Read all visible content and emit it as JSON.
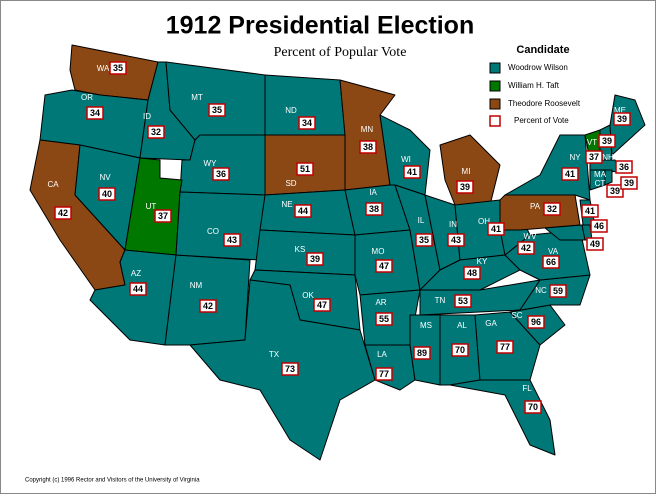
{
  "header": {
    "title": "1912 Presidential Election",
    "subtitle": "Percent of Popular Vote"
  },
  "legend": {
    "title": "Candidate",
    "items": [
      {
        "label": "Woodrow Wilson",
        "color": "#007878"
      },
      {
        "label": "William H. Taft",
        "color": "#007800"
      },
      {
        "label": "Theodore Roosevelt",
        "color": "#8c4814"
      }
    ],
    "percent_label": "Percent of Vote"
  },
  "states": [
    {
      "label": "WA",
      "value": 35,
      "color": "#8c4814"
    },
    {
      "label": "OR",
      "value": 34,
      "color": "#007878"
    },
    {
      "label": "CA",
      "value": 42,
      "color": "#8c4814"
    },
    {
      "label": "NV",
      "value": 40,
      "color": "#007878"
    },
    {
      "label": "ID",
      "value": 32,
      "color": "#007878"
    },
    {
      "label": "MT",
      "value": 35,
      "color": "#007878"
    },
    {
      "label": "WY",
      "value": 36,
      "color": "#007878"
    },
    {
      "label": "UT",
      "value": 37,
      "color": "#007800"
    },
    {
      "label": "AZ",
      "value": 44,
      "color": "#007878"
    },
    {
      "label": "NM",
      "value": 42,
      "color": "#007878"
    },
    {
      "label": "CO",
      "value": 43,
      "color": "#007878"
    },
    {
      "label": "ND",
      "value": 34,
      "color": "#007878"
    },
    {
      "label": "SD",
      "value": 51,
      "color": "#8c4814"
    },
    {
      "label": "NE",
      "value": 44,
      "color": "#007878"
    },
    {
      "label": "KS",
      "value": 39,
      "color": "#007878"
    },
    {
      "label": "OK",
      "value": 47,
      "color": "#007878"
    },
    {
      "label": "TX",
      "value": 73,
      "color": "#007878"
    },
    {
      "label": "MN",
      "value": 38,
      "color": "#8c4814"
    },
    {
      "label": "IA",
      "value": 38,
      "color": "#007878"
    },
    {
      "label": "MO",
      "value": 47,
      "color": "#007878"
    },
    {
      "label": "AR",
      "value": 55,
      "color": "#007878"
    },
    {
      "label": "LA",
      "value": 77,
      "color": "#007878"
    },
    {
      "label": "WI",
      "value": 41,
      "color": "#007878"
    },
    {
      "label": "IL",
      "value": 35,
      "color": "#007878"
    },
    {
      "label": "MI",
      "value": 39,
      "color": "#8c4814"
    },
    {
      "label": "IN",
      "value": 43,
      "color": "#007878"
    },
    {
      "label": "OH",
      "value": 41,
      "color": "#007878"
    },
    {
      "label": "KY",
      "value": 48,
      "color": "#007878"
    },
    {
      "label": "TN",
      "value": 53,
      "color": "#007878"
    },
    {
      "label": "MS",
      "value": 89,
      "color": "#007878"
    },
    {
      "label": "AL",
      "value": 70,
      "color": "#007878"
    },
    {
      "label": "GA",
      "value": 77,
      "color": "#007878"
    },
    {
      "label": "FL",
      "value": 70,
      "color": "#007878"
    },
    {
      "label": "SC",
      "value": 96,
      "color": "#007878"
    },
    {
      "label": "NC",
      "value": 59,
      "color": "#007878"
    },
    {
      "label": "VA",
      "value": 66,
      "color": "#007878"
    },
    {
      "label": "WV",
      "value": 42,
      "color": "#007878"
    },
    {
      "label": "PA",
      "value": 32,
      "color": "#8c4814"
    },
    {
      "label": "NY",
      "value": 41,
      "color": "#007878"
    },
    {
      "label": "VT",
      "value": 39,
      "color": "#007800"
    },
    {
      "label": "NH",
      "value": 37,
      "color": "#007878"
    },
    {
      "label": "ME",
      "value": 39,
      "color": "#007878"
    },
    {
      "label": "MA",
      "value": 36,
      "color": "#007878"
    },
    {
      "label": "CT",
      "value": 39,
      "color": "#007878"
    },
    {
      "label": "RI",
      "value": 39,
      "color": "#007878"
    },
    {
      "label": "NJ",
      "value": 41,
      "color": "#007878"
    },
    {
      "label": "DE",
      "value": 46,
      "color": "#007878"
    },
    {
      "label": "MD",
      "value": 49,
      "color": "#007878"
    }
  ],
  "footer": {
    "copyright": "Copyright (c) 1996 Rector and Visitors of the University of Virginia"
  }
}
